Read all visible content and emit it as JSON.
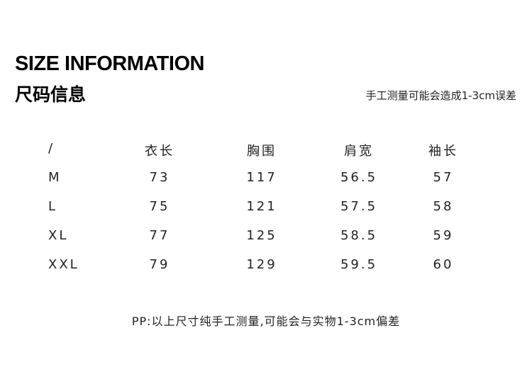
{
  "header": {
    "title_en": "SIZE INFORMATION",
    "title_cn": "尺码信息",
    "note": "手工测量可能会造成1-3cm误差"
  },
  "table": {
    "headers": [
      "/",
      "衣长",
      "胸围",
      "肩宽",
      "袖长"
    ],
    "rows": [
      [
        "M",
        "73",
        "117",
        "56.5",
        "57"
      ],
      [
        "L",
        "75",
        "121",
        "57.5",
        "58"
      ],
      [
        "XL",
        "77",
        "125",
        "58.5",
        "59"
      ],
      [
        "XXL",
        "79",
        "129",
        "59.5",
        "60"
      ]
    ]
  },
  "footer": {
    "note": "PP:以上尺寸纯手工测量,可能会与实物1-3cm偏差"
  }
}
